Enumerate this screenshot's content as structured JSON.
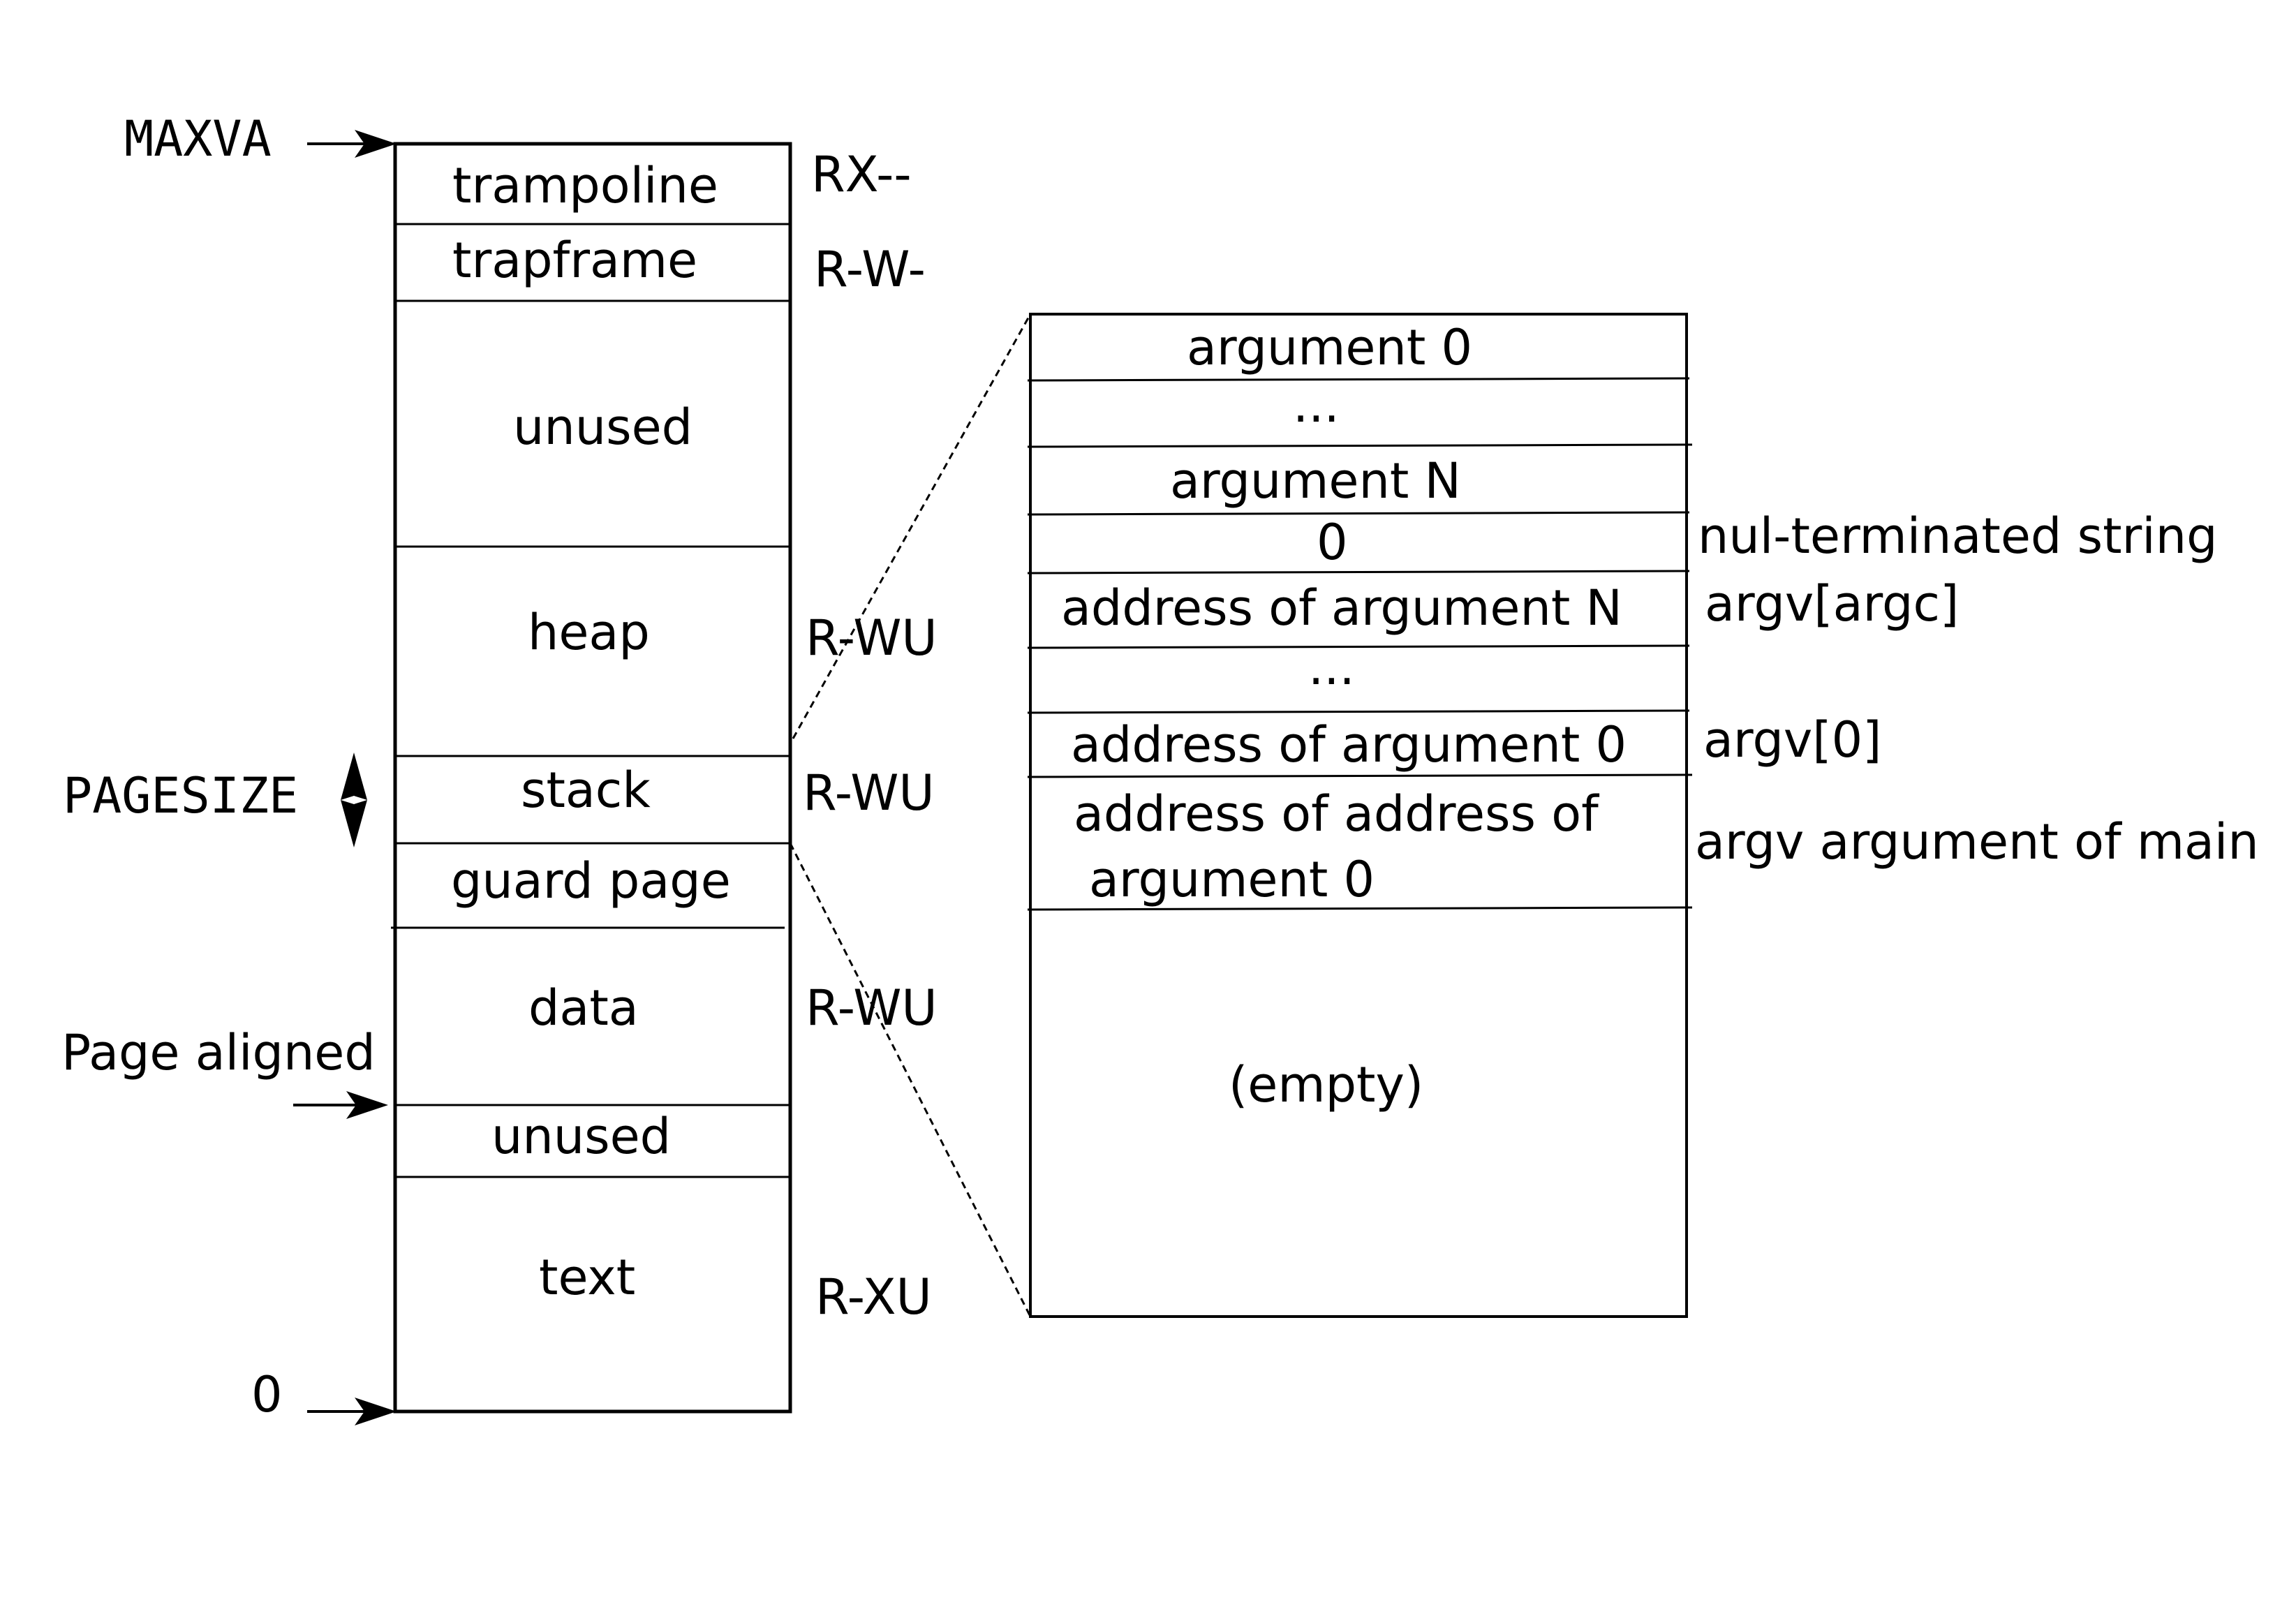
{
  "left_labels": {
    "maxva": "MAXVA",
    "pagesize": "PAGESIZE",
    "page_aligned": "Page aligned",
    "zero": "0"
  },
  "address_space": {
    "segments": [
      {
        "label": "trampoline",
        "perm": "RX--"
      },
      {
        "label": "trapframe",
        "perm": "R-W-"
      },
      {
        "label": "unused",
        "perm": ""
      },
      {
        "label": "heap",
        "perm": "R-WU"
      },
      {
        "label": "stack",
        "perm": "R-WU"
      },
      {
        "label": "guard page",
        "perm": ""
      },
      {
        "label": "data",
        "perm": "R-WU"
      },
      {
        "label": "unused",
        "perm": ""
      },
      {
        "label": "text",
        "perm": "R-XU"
      }
    ]
  },
  "stack_detail": {
    "rows": [
      {
        "label": "argument 0",
        "note": ""
      },
      {
        "label": "...",
        "note": ""
      },
      {
        "label": "argument N",
        "note": ""
      },
      {
        "label": "0",
        "note": "nul-terminated string"
      },
      {
        "label": "address of argument N",
        "note": "argv[argc]"
      },
      {
        "label": "...",
        "note": ""
      },
      {
        "label": "address of argument 0",
        "note": "argv[0]"
      },
      {
        "label": "address of address of",
        "label2": "argument 0",
        "note": "argv argument of main"
      },
      {
        "label": "(empty)",
        "note": ""
      }
    ]
  }
}
